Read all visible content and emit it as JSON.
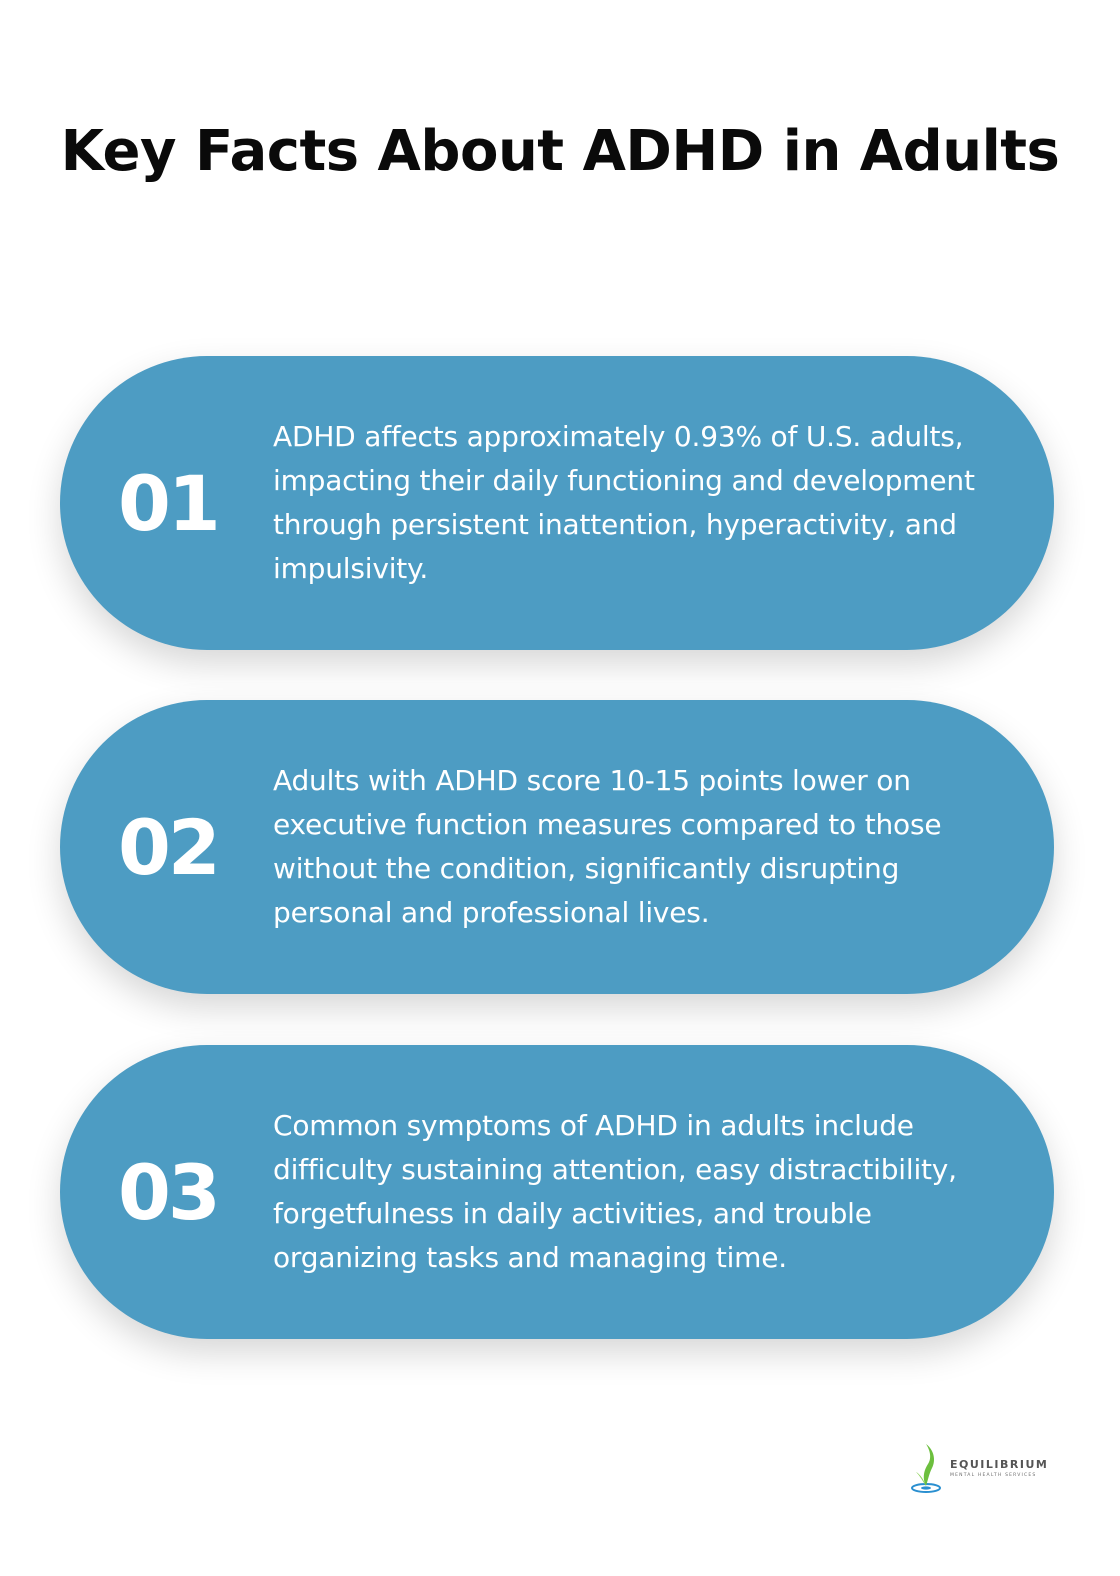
{
  "title": "Key Facts About ADHD in Adults",
  "colors": {
    "card_background": "#4d9cc3",
    "title_text": "#0a0a0a",
    "card_text": "#ffffff"
  },
  "facts": [
    {
      "number": "01",
      "text": "ADHD affects approximately 0.93% of U.S. adults, impacting their daily functioning and development through persistent inattention, hyperactivity, and impulsivity."
    },
    {
      "number": "02",
      "text": "Adults with ADHD score 10-15 points lower on executive function measures compared to those without the condition, significantly disrupting personal and professional lives."
    },
    {
      "number": "03",
      "text": "Common symptoms of ADHD in adults include difficulty sustaining attention, easy distractibility, forgetfulness in daily activities, and trouble organizing tasks and managing time."
    }
  ],
  "logo": {
    "name": "EQUILIBRIUM",
    "tagline": "MENTAL HEALTH SERVICES",
    "icon": "sprout-water-drop-icon"
  }
}
